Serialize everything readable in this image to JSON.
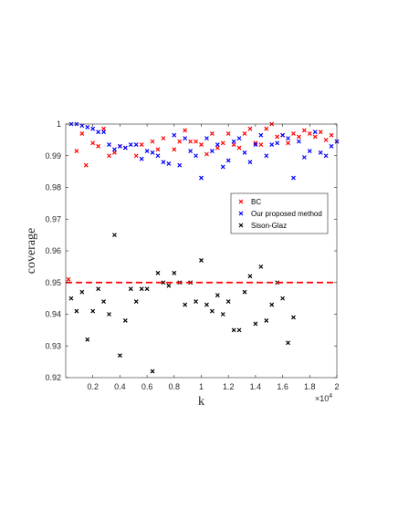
{
  "chart_data": {
    "type": "scatter",
    "xlabel": "k",
    "ylabel": "coverage",
    "x_exponent_label": "×10",
    "x_exponent_power": "4",
    "xlim": [
      0,
      20000
    ],
    "ylim": [
      0.92,
      1.0
    ],
    "x_ticks": [
      2000,
      4000,
      6000,
      8000,
      10000,
      12000,
      14000,
      16000,
      18000,
      20000
    ],
    "x_tick_labels": [
      "0.2",
      "0.4",
      "0.6",
      "0.8",
      "1",
      "1.2",
      "1.4",
      "1.6",
      "1.8",
      "2"
    ],
    "y_ticks": [
      0.92,
      0.93,
      0.94,
      0.95,
      0.96,
      0.97,
      0.98,
      0.99,
      1.0
    ],
    "y_tick_labels": [
      "0.92",
      "0.93",
      "0.94",
      "0.95",
      "0.96",
      "0.97",
      "0.98",
      "0.99",
      "1"
    ],
    "grid": false,
    "legend_position": "right",
    "reference_line": {
      "y": 0.95,
      "color": "#ff0000",
      "style": "dashed"
    },
    "series": [
      {
        "name": "BC",
        "color": "#ff0000",
        "marker": "x",
        "points": [
          [
            200,
            0.951
          ],
          [
            800,
            0.9915
          ],
          [
            1200,
            0.997
          ],
          [
            1500,
            0.987
          ],
          [
            2000,
            0.994
          ],
          [
            2400,
            0.993
          ],
          [
            2800,
            0.9985
          ],
          [
            3200,
            0.99
          ],
          [
            3600,
            0.991
          ],
          [
            4000,
            0.993
          ],
          [
            4400,
            0.9925
          ],
          [
            5200,
            0.99
          ],
          [
            5600,
            0.9935
          ],
          [
            6400,
            0.9945
          ],
          [
            6800,
            0.992
          ],
          [
            7200,
            0.9955
          ],
          [
            8000,
            0.992
          ],
          [
            8400,
            0.9945
          ],
          [
            8800,
            0.998
          ],
          [
            9200,
            0.9945
          ],
          [
            9600,
            0.9945
          ],
          [
            10000,
            0.9935
          ],
          [
            10400,
            0.9905
          ],
          [
            10800,
            0.997
          ],
          [
            11200,
            0.9925
          ],
          [
            11600,
            0.994
          ],
          [
            12000,
            0.997
          ],
          [
            12400,
            0.9935
          ],
          [
            12800,
            0.9925
          ],
          [
            13200,
            0.997
          ],
          [
            13600,
            0.9985
          ],
          [
            14000,
            0.994
          ],
          [
            14400,
            0.9935
          ],
          [
            14800,
            0.9985
          ],
          [
            15200,
            1.0
          ],
          [
            15600,
            0.996
          ],
          [
            16000,
            0.9965
          ],
          [
            16400,
            0.994
          ],
          [
            16800,
            0.997
          ],
          [
            17200,
            0.996
          ],
          [
            17600,
            0.998
          ],
          [
            18000,
            0.997
          ],
          [
            18400,
            0.996
          ],
          [
            18800,
            0.9975
          ],
          [
            19200,
            0.995
          ],
          [
            19600,
            0.9965
          ],
          [
            20000,
            0.9945
          ]
        ]
      },
      {
        "name": "Our proposed method",
        "color": "#0000ff",
        "marker": "x",
        "points": [
          [
            400,
            1.0
          ],
          [
            800,
            1.0
          ],
          [
            1200,
            0.9995
          ],
          [
            1600,
            0.999
          ],
          [
            2000,
            0.9985
          ],
          [
            2400,
            0.9975
          ],
          [
            2800,
            0.9975
          ],
          [
            3200,
            0.9935
          ],
          [
            3600,
            0.992
          ],
          [
            4000,
            0.993
          ],
          [
            4400,
            0.9925
          ],
          [
            4800,
            0.9935
          ],
          [
            5200,
            0.9935
          ],
          [
            5600,
            0.989
          ],
          [
            6000,
            0.9915
          ],
          [
            6400,
            0.991
          ],
          [
            6800,
            0.99
          ],
          [
            7200,
            0.988
          ],
          [
            7600,
            0.9875
          ],
          [
            8000,
            0.9965
          ],
          [
            8400,
            0.987
          ],
          [
            8800,
            0.9955
          ],
          [
            9200,
            0.9915
          ],
          [
            9600,
            0.99
          ],
          [
            10000,
            0.983
          ],
          [
            10400,
            0.9955
          ],
          [
            10800,
            0.9915
          ],
          [
            11200,
            0.9935
          ],
          [
            11600,
            0.9865
          ],
          [
            12000,
            0.9885
          ],
          [
            12400,
            0.9945
          ],
          [
            12800,
            0.9955
          ],
          [
            13200,
            0.991
          ],
          [
            13600,
            0.988
          ],
          [
            14000,
            0.9935
          ],
          [
            14400,
            0.9965
          ],
          [
            14800,
            0.99
          ],
          [
            15200,
            0.9935
          ],
          [
            15600,
            0.994
          ],
          [
            16000,
            0.9965
          ],
          [
            16400,
            0.9955
          ],
          [
            16800,
            0.983
          ],
          [
            17200,
            0.9945
          ],
          [
            17600,
            0.9895
          ],
          [
            18000,
            0.9915
          ],
          [
            18400,
            0.9975
          ],
          [
            18800,
            0.991
          ],
          [
            19200,
            0.99
          ],
          [
            19600,
            0.993
          ],
          [
            20000,
            0.9945
          ]
        ]
      },
      {
        "name": "Sison-Glaz",
        "color": "#000000",
        "marker": "x",
        "points": [
          [
            400,
            0.945
          ],
          [
            800,
            0.941
          ],
          [
            1200,
            0.947
          ],
          [
            1600,
            0.932
          ],
          [
            2000,
            0.941
          ],
          [
            2400,
            0.948
          ],
          [
            2800,
            0.944
          ],
          [
            3200,
            0.94
          ],
          [
            3600,
            0.965
          ],
          [
            4000,
            0.927
          ],
          [
            4400,
            0.938
          ],
          [
            4800,
            0.948
          ],
          [
            5200,
            0.944
          ],
          [
            5600,
            0.948
          ],
          [
            6000,
            0.948
          ],
          [
            6400,
            0.922
          ],
          [
            6800,
            0.953
          ],
          [
            7200,
            0.95
          ],
          [
            7600,
            0.949
          ],
          [
            8000,
            0.953
          ],
          [
            8400,
            0.95
          ],
          [
            8800,
            0.943
          ],
          [
            9200,
            0.95
          ],
          [
            9600,
            0.944
          ],
          [
            10000,
            0.957
          ],
          [
            10400,
            0.943
          ],
          [
            10800,
            0.941
          ],
          [
            11200,
            0.946
          ],
          [
            11600,
            0.94
          ],
          [
            12000,
            0.944
          ],
          [
            12400,
            0.935
          ],
          [
            12800,
            0.935
          ],
          [
            13200,
            0.947
          ],
          [
            13600,
            0.952
          ],
          [
            14000,
            0.937
          ],
          [
            14400,
            0.955
          ],
          [
            14800,
            0.938
          ],
          [
            15200,
            0.943
          ],
          [
            15600,
            0.95
          ],
          [
            16000,
            0.945
          ],
          [
            16400,
            0.931
          ],
          [
            16800,
            0.939
          ]
        ]
      }
    ]
  }
}
